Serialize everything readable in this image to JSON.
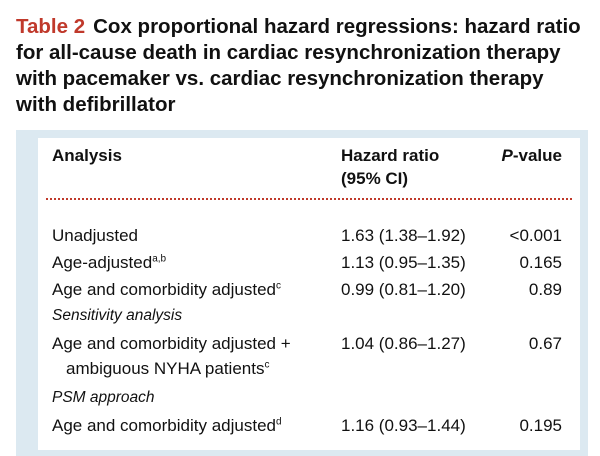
{
  "caption": {
    "label": "Table 2",
    "title": "Cox proportional hazard regressions: hazard ratio for all-cause death in cardiac resynchronization therapy with pacemaker vs. cardiac resynchronization therapy with defibrillator"
  },
  "table": {
    "headers": {
      "analysis": "Analysis",
      "hr_line1": "Hazard ratio",
      "hr_line2": "(95% CI)",
      "p_italic": "P",
      "p_rest": "-value"
    },
    "rows": [
      {
        "analysis": "Unadjusted",
        "sup": "",
        "hr": "1.63 (1.38–1.92)",
        "p": "<0.001"
      },
      {
        "analysis": "Age-adjusted",
        "sup": "a,b",
        "hr": "1.13 (0.95–1.35)",
        "p": "0.165"
      },
      {
        "analysis": "Age and comorbidity adjusted",
        "sup": "c",
        "hr": "0.99 (0.81–1.20)",
        "p": "0.89"
      },
      {
        "section": "Sensitivity analysis"
      },
      {
        "analysis": "Age and comorbidity adjusted +",
        "analysis_cont": "ambiguous NYHA patients",
        "sup": "c",
        "hr": "1.04 (0.86–1.27)",
        "p": "0.67"
      },
      {
        "section": "PSM approach"
      },
      {
        "analysis": "Age and comorbidity adjusted",
        "sup": "d",
        "hr": "1.16 (0.93–1.44)",
        "p": "0.195"
      }
    ]
  }
}
